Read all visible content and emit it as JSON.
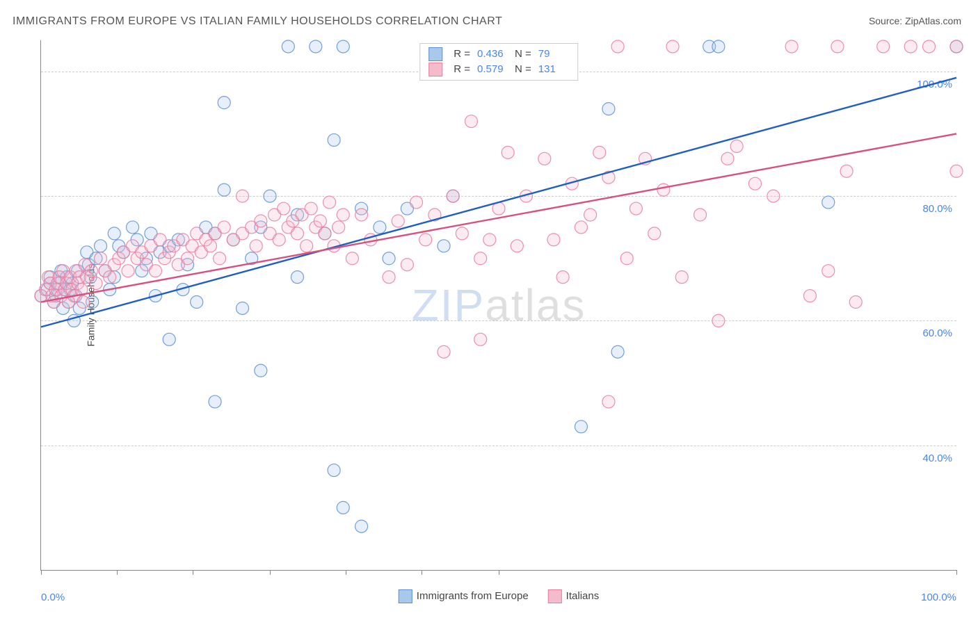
{
  "title": "IMMIGRANTS FROM EUROPE VS ITALIAN FAMILY HOUSEHOLDS CORRELATION CHART",
  "source_label": "Source: ",
  "source_name": "ZipAtlas.com",
  "ylabel": "Family Households",
  "watermark_z": "ZIP",
  "watermark_rest": "atlas",
  "chart": {
    "type": "scatter",
    "background_color": "#ffffff",
    "grid_color": "#cccccc",
    "axis_color": "#888888",
    "xlim": [
      0,
      100
    ],
    "ylim": [
      20,
      105
    ],
    "x_ticks": [
      0,
      8.3,
      16.6,
      25,
      33.3,
      41.6,
      50,
      100
    ],
    "y_gridlines": [
      40,
      60,
      80,
      100
    ],
    "y_tick_labels": [
      "40.0%",
      "60.0%",
      "80.0%",
      "100.0%"
    ],
    "x_tick_labels": {
      "min": "0.0%",
      "max": "100.0%"
    },
    "tick_label_color": "#4a86e8",
    "tick_label_fontsize": 15,
    "marker_radius": 9,
    "marker_fill_opacity": 0.28,
    "marker_stroke_opacity": 0.85,
    "marker_stroke_width": 1.2,
    "trend_line_width": 2.4,
    "series": [
      {
        "id": "europe",
        "label": "Immigrants from Europe",
        "color_fill": "#a8c8ec",
        "color_stroke": "#5b8fd6",
        "trend_color": "#1f5fc4",
        "R": "0.436",
        "N": "79",
        "trend": {
          "x1": 0,
          "y1": 59,
          "x2": 100,
          "y2": 99
        },
        "points": [
          [
            0,
            64
          ],
          [
            0.7,
            65
          ],
          [
            1,
            66
          ],
          [
            1,
            67
          ],
          [
            1.4,
            63
          ],
          [
            1.6,
            64
          ],
          [
            1.8,
            65
          ],
          [
            2,
            66
          ],
          [
            2,
            67
          ],
          [
            2.2,
            68
          ],
          [
            2.4,
            62
          ],
          [
            2.6,
            65
          ],
          [
            2.8,
            67
          ],
          [
            3,
            63
          ],
          [
            3.2,
            65
          ],
          [
            3.4,
            66
          ],
          [
            3.6,
            60
          ],
          [
            3.8,
            64
          ],
          [
            4,
            68
          ],
          [
            4.2,
            62
          ],
          [
            5,
            71
          ],
          [
            5.2,
            69
          ],
          [
            5.4,
            67
          ],
          [
            5.6,
            63
          ],
          [
            6,
            70
          ],
          [
            6.5,
            72
          ],
          [
            7,
            68
          ],
          [
            7.5,
            65
          ],
          [
            8,
            74
          ],
          [
            8,
            67
          ],
          [
            8.5,
            72
          ],
          [
            9,
            71
          ],
          [
            10,
            75
          ],
          [
            10.5,
            73
          ],
          [
            11,
            68
          ],
          [
            11.5,
            70
          ],
          [
            12,
            74
          ],
          [
            12.5,
            64
          ],
          [
            13,
            71
          ],
          [
            14,
            72
          ],
          [
            14,
            57
          ],
          [
            15,
            73
          ],
          [
            15.5,
            65
          ],
          [
            16,
            69
          ],
          [
            17,
            63
          ],
          [
            18,
            75
          ],
          [
            19,
            74
          ],
          [
            19,
            47
          ],
          [
            20,
            81
          ],
          [
            20,
            95
          ],
          [
            21,
            73
          ],
          [
            22,
            62
          ],
          [
            23,
            70
          ],
          [
            24,
            75
          ],
          [
            24,
            52
          ],
          [
            25,
            80
          ],
          [
            27,
            104
          ],
          [
            28,
            77
          ],
          [
            28,
            67
          ],
          [
            30,
            104
          ],
          [
            31,
            74
          ],
          [
            32,
            89
          ],
          [
            32,
            36
          ],
          [
            33,
            104
          ],
          [
            33,
            30
          ],
          [
            35,
            78
          ],
          [
            35,
            27
          ],
          [
            37,
            75
          ],
          [
            38,
            70
          ],
          [
            40,
            78
          ],
          [
            44,
            72
          ],
          [
            45,
            80
          ],
          [
            59,
            43
          ],
          [
            62,
            94
          ],
          [
            63,
            55
          ],
          [
            73,
            104
          ],
          [
            74,
            104
          ],
          [
            86,
            79
          ],
          [
            100,
            104
          ]
        ]
      },
      {
        "id": "italians",
        "label": "Italians",
        "color_fill": "#f4bccb",
        "color_stroke": "#e97ba0",
        "trend_color": "#d6517e",
        "R": "0.579",
        "N": "131",
        "trend": {
          "x1": 0,
          "y1": 63,
          "x2": 100,
          "y2": 90
        },
        "points": [
          [
            0,
            64
          ],
          [
            0.5,
            65
          ],
          [
            0.8,
            67
          ],
          [
            1,
            66
          ],
          [
            1.2,
            64
          ],
          [
            1.4,
            63
          ],
          [
            1.6,
            65
          ],
          [
            1.8,
            66
          ],
          [
            2,
            67
          ],
          [
            2.2,
            64
          ],
          [
            2.4,
            68
          ],
          [
            2.6,
            65
          ],
          [
            2.8,
            66
          ],
          [
            3,
            63
          ],
          [
            3.2,
            67
          ],
          [
            3.4,
            65
          ],
          [
            3.6,
            64
          ],
          [
            3.8,
            68
          ],
          [
            4,
            66
          ],
          [
            4.2,
            67
          ],
          [
            4.4,
            65
          ],
          [
            4.6,
            63
          ],
          [
            4.8,
            69
          ],
          [
            5,
            67
          ],
          [
            5.5,
            68
          ],
          [
            6,
            66
          ],
          [
            6.5,
            70
          ],
          [
            7,
            68
          ],
          [
            7.5,
            67
          ],
          [
            8,
            69
          ],
          [
            8.5,
            70
          ],
          [
            9,
            71
          ],
          [
            9.5,
            68
          ],
          [
            10,
            72
          ],
          [
            10.5,
            70
          ],
          [
            11,
            71
          ],
          [
            11.5,
            69
          ],
          [
            12,
            72
          ],
          [
            12.5,
            68
          ],
          [
            13,
            73
          ],
          [
            13.5,
            70
          ],
          [
            14,
            71
          ],
          [
            14.5,
            72
          ],
          [
            15,
            69
          ],
          [
            15.5,
            73
          ],
          [
            16,
            70
          ],
          [
            16.5,
            72
          ],
          [
            17,
            74
          ],
          [
            17.5,
            71
          ],
          [
            18,
            73
          ],
          [
            18.5,
            72
          ],
          [
            19,
            74
          ],
          [
            19.5,
            70
          ],
          [
            20,
            75
          ],
          [
            21,
            73
          ],
          [
            22,
            74
          ],
          [
            22,
            80
          ],
          [
            23,
            75
          ],
          [
            23.5,
            72
          ],
          [
            24,
            76
          ],
          [
            25,
            74
          ],
          [
            25.5,
            77
          ],
          [
            26,
            73
          ],
          [
            26.5,
            78
          ],
          [
            27,
            75
          ],
          [
            27.5,
            76
          ],
          [
            28,
            74
          ],
          [
            28.5,
            77
          ],
          [
            29,
            72
          ],
          [
            29.5,
            78
          ],
          [
            30,
            75
          ],
          [
            30.5,
            76
          ],
          [
            31,
            74
          ],
          [
            31.5,
            79
          ],
          [
            32,
            72
          ],
          [
            32.5,
            75
          ],
          [
            33,
            77
          ],
          [
            34,
            70
          ],
          [
            35,
            77
          ],
          [
            36,
            73
          ],
          [
            38,
            67
          ],
          [
            39,
            76
          ],
          [
            40,
            69
          ],
          [
            41,
            79
          ],
          [
            42,
            73
          ],
          [
            43,
            77
          ],
          [
            44,
            55
          ],
          [
            45,
            80
          ],
          [
            46,
            74
          ],
          [
            47,
            92
          ],
          [
            48,
            70
          ],
          [
            48,
            57
          ],
          [
            49,
            73
          ],
          [
            50,
            78
          ],
          [
            51,
            87
          ],
          [
            52,
            72
          ],
          [
            53,
            80
          ],
          [
            55,
            86
          ],
          [
            56,
            73
          ],
          [
            57,
            67
          ],
          [
            58,
            82
          ],
          [
            59,
            75
          ],
          [
            60,
            77
          ],
          [
            61,
            87
          ],
          [
            62,
            83
          ],
          [
            62,
            47
          ],
          [
            63,
            104
          ],
          [
            64,
            70
          ],
          [
            65,
            78
          ],
          [
            66,
            86
          ],
          [
            67,
            74
          ],
          [
            68,
            81
          ],
          [
            69,
            104
          ],
          [
            70,
            67
          ],
          [
            72,
            77
          ],
          [
            74,
            60
          ],
          [
            75,
            86
          ],
          [
            76,
            88
          ],
          [
            78,
            82
          ],
          [
            80,
            80
          ],
          [
            82,
            104
          ],
          [
            84,
            64
          ],
          [
            86,
            68
          ],
          [
            87,
            104
          ],
          [
            88,
            84
          ],
          [
            89,
            63
          ],
          [
            92,
            104
          ],
          [
            95,
            104
          ],
          [
            97,
            104
          ],
          [
            100,
            84
          ],
          [
            100,
            104
          ]
        ]
      }
    ]
  },
  "stats_legend": {
    "R_label": "R =",
    "N_label": "N ="
  }
}
